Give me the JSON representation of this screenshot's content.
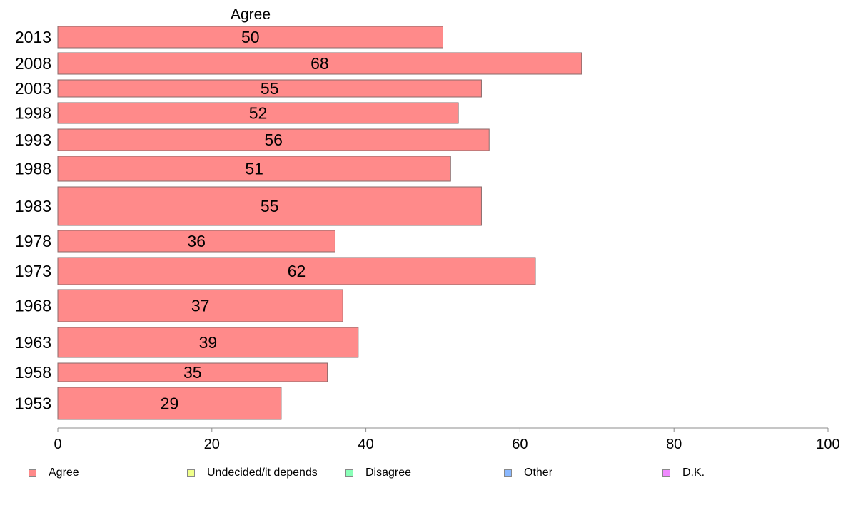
{
  "chart_data": {
    "type": "bar",
    "orientation": "horizontal",
    "categories": [
      "2013",
      "2008",
      "2003",
      "1998",
      "1993",
      "1988",
      "1983",
      "1978",
      "1973",
      "1968",
      "1963",
      "1958",
      "1953"
    ],
    "series": [
      {
        "name": "Agree",
        "color": "#ff8a8a",
        "values": [
          50,
          68,
          55,
          52,
          56,
          51,
          55,
          36,
          62,
          37,
          39,
          35,
          29
        ]
      }
    ],
    "column_header": "Agree",
    "xlim": [
      0,
      100
    ],
    "xticks": [
      "0",
      "20",
      "40",
      "60",
      "80",
      "100"
    ],
    "grid": false,
    "legend_position": "bottom",
    "legend": [
      {
        "label": "Agree",
        "color": "#ff8a8a"
      },
      {
        "label": "Undecided/it depends",
        "color": "#f0ff8a"
      },
      {
        "label": "Disagree",
        "color": "#8affb8"
      },
      {
        "label": "Other",
        "color": "#8ab8ff"
      },
      {
        "label": "D.K.",
        "color": "#f08aff"
      }
    ]
  }
}
